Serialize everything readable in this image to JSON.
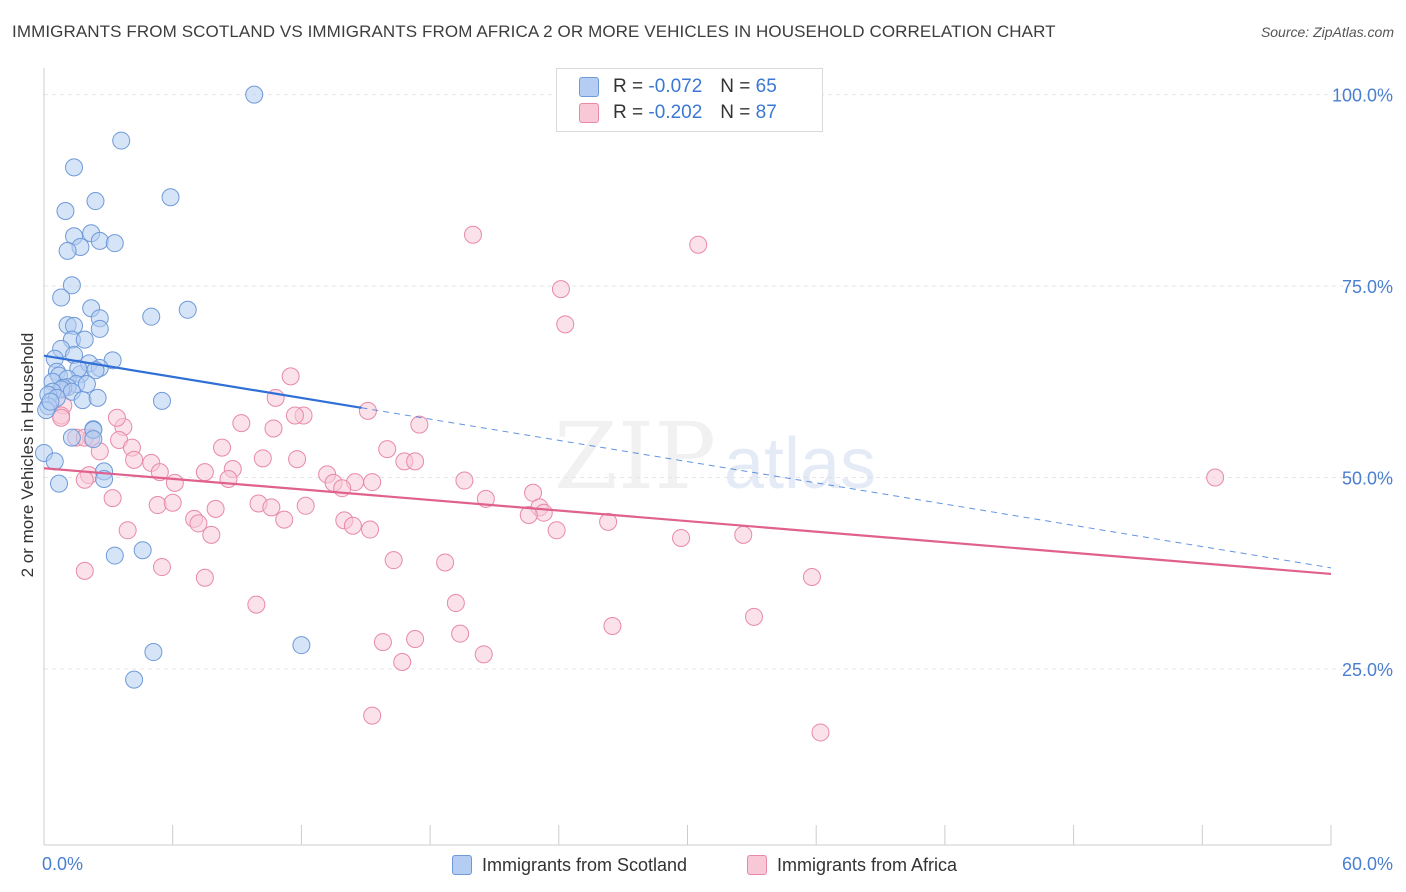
{
  "title": "IMMIGRANTS FROM SCOTLAND VS IMMIGRANTS FROM AFRICA 2 OR MORE VEHICLES IN HOUSEHOLD CORRELATION CHART",
  "source": "Source: ZipAtlas.com",
  "watermark": {
    "zip": "ZIP",
    "atlas": "atlas"
  },
  "legend": {
    "r_label": "R =",
    "n_label": "N =",
    "rows": [
      {
        "r": "-0.072",
        "n": "65"
      },
      {
        "r": "-0.202",
        "n": "87"
      }
    ]
  },
  "colors": {
    "blue_fill": "#b5cdf2",
    "blue_stroke": "#6f9ad8",
    "blue_line": "#2f6fd6",
    "pink_fill": "#f8c8d7",
    "pink_stroke": "#e88aa7",
    "pink_line": "#e0608e",
    "tick_label": "#4a7fd0",
    "grid": "#e6e6e6"
  },
  "chart_data": {
    "type": "scatter",
    "title": "IMMIGRANTS FROM SCOTLAND VS IMMIGRANTS FROM AFRICA 2 OR MORE VEHICLES IN HOUSEHOLD CORRELATION CHART",
    "xlabel": "",
    "ylabel": "2 or more Vehicles in Household",
    "xlim": [
      0,
      60
    ],
    "ylim": [
      2,
      104
    ],
    "x_tick_labels": [
      "0.0%",
      "60.0%"
    ],
    "y_ticks": [
      25,
      50,
      75,
      100
    ],
    "y_tick_labels": [
      "25.0%",
      "50.0%",
      "75.0%",
      "100.0%"
    ],
    "grid": true,
    "legend_position": "top-center",
    "series": [
      {
        "name": "Immigrants from Scotland",
        "r": -0.072,
        "n": 65,
        "trend": {
          "x": [
            0,
            14.8
          ],
          "y": [
            65.9,
            59.1
          ],
          "dashed_to": [
            60,
            38.2
          ]
        },
        "points": [
          [
            9.8,
            100
          ],
          [
            3.6,
            94
          ],
          [
            1.4,
            90.5
          ],
          [
            5.9,
            86.6
          ],
          [
            2.4,
            86.1
          ],
          [
            1.0,
            84.8
          ],
          [
            1.4,
            81.5
          ],
          [
            2.2,
            81.9
          ],
          [
            2.6,
            80.9
          ],
          [
            1.7,
            80.1
          ],
          [
            3.3,
            80.6
          ],
          [
            1.1,
            79.6
          ],
          [
            1.3,
            75.1
          ],
          [
            0.8,
            73.5
          ],
          [
            2.2,
            72.1
          ],
          [
            6.7,
            71.9
          ],
          [
            5.0,
            71.0
          ],
          [
            2.6,
            70.8
          ],
          [
            1.1,
            69.9
          ],
          [
            2.6,
            69.4
          ],
          [
            1.4,
            69.8
          ],
          [
            1.3,
            68
          ],
          [
            1.9,
            68
          ],
          [
            0.8,
            66.8
          ],
          [
            1.4,
            66
          ],
          [
            0.5,
            65.5
          ],
          [
            3.2,
            65.3
          ],
          [
            0.6,
            63.8
          ],
          [
            1.7,
            63.5
          ],
          [
            2.1,
            64.9
          ],
          [
            1.6,
            64.2
          ],
          [
            2.6,
            64.3
          ],
          [
            2.4,
            64
          ],
          [
            0.7,
            63.3
          ],
          [
            1.1,
            62.9
          ],
          [
            0.4,
            62.5
          ],
          [
            1.5,
            62.2
          ],
          [
            1.1,
            61.8
          ],
          [
            0.9,
            61.7
          ],
          [
            2.0,
            62.2
          ],
          [
            0.8,
            61.5
          ],
          [
            0.4,
            61.2
          ],
          [
            0.2,
            60.8
          ],
          [
            1.3,
            61.2
          ],
          [
            0.6,
            60.4
          ],
          [
            1.8,
            60.1
          ],
          [
            2.5,
            60.4
          ],
          [
            5.5,
            60
          ],
          [
            0.2,
            59.3
          ],
          [
            0.1,
            58.8
          ],
          [
            0.3,
            59.9
          ],
          [
            2.3,
            56.3
          ],
          [
            2.3,
            56.2
          ],
          [
            1.3,
            55.2
          ],
          [
            2.3,
            55
          ],
          [
            0.0,
            53.2
          ],
          [
            0.5,
            52.1
          ],
          [
            2.8,
            50.8
          ],
          [
            2.8,
            49.8
          ],
          [
            0.7,
            49.2
          ],
          [
            3.3,
            39.8
          ],
          [
            4.6,
            40.5
          ],
          [
            5.1,
            27.2
          ],
          [
            12.0,
            28.1
          ],
          [
            4.2,
            23.6
          ]
        ]
      },
      {
        "name": "Immigrants from Africa",
        "r": -0.202,
        "n": 87,
        "trend": {
          "x": [
            0,
            60
          ],
          "y": [
            51.2,
            37.4
          ]
        },
        "points": [
          [
            20.0,
            81.7
          ],
          [
            30.5,
            80.4
          ],
          [
            24.1,
            74.6
          ],
          [
            24.3,
            70
          ],
          [
            11.5,
            63.2
          ],
          [
            0.8,
            61.5
          ],
          [
            10.8,
            60.4
          ],
          [
            0.9,
            59.4
          ],
          [
            0.8,
            58.1
          ],
          [
            12.1,
            58.1
          ],
          [
            15.1,
            58.7
          ],
          [
            11.7,
            58.1
          ],
          [
            17.5,
            56.9
          ],
          [
            3.7,
            56.6
          ],
          [
            9.2,
            57.1
          ],
          [
            10.7,
            56.4
          ],
          [
            1.5,
            55.2
          ],
          [
            2.2,
            55.2
          ],
          [
            3.5,
            54.9
          ],
          [
            8.3,
            53.9
          ],
          [
            16.0,
            53.7
          ],
          [
            4.1,
            53.9
          ],
          [
            2.6,
            53.4
          ],
          [
            11.8,
            52.4
          ],
          [
            16.8,
            52.1
          ],
          [
            4.2,
            52.3
          ],
          [
            5.0,
            51.9
          ],
          [
            10.2,
            52.5
          ],
          [
            17.3,
            52.1
          ],
          [
            8.8,
            51.1
          ],
          [
            5.4,
            50.7
          ],
          [
            7.5,
            50.7
          ],
          [
            2.1,
            50.3
          ],
          [
            13.2,
            50.4
          ],
          [
            1.9,
            49.7
          ],
          [
            8.6,
            49.8
          ],
          [
            19.6,
            49.6
          ],
          [
            6.1,
            49.3
          ],
          [
            13.5,
            49.3
          ],
          [
            14.5,
            49.4
          ],
          [
            15.3,
            49.4
          ],
          [
            13.9,
            48.6
          ],
          [
            22.8,
            48
          ],
          [
            3.2,
            47.3
          ],
          [
            20.6,
            47.2
          ],
          [
            5.3,
            46.4
          ],
          [
            10.0,
            46.6
          ],
          [
            12.2,
            46.3
          ],
          [
            6.0,
            46.7
          ],
          [
            8.0,
            45.9
          ],
          [
            10.6,
            46.1
          ],
          [
            23.1,
            46.1
          ],
          [
            23.3,
            45.4
          ],
          [
            22.6,
            45.1
          ],
          [
            7.0,
            44.6
          ],
          [
            26.3,
            44.2
          ],
          [
            14.0,
            44.4
          ],
          [
            7.2,
            44
          ],
          [
            11.2,
            44.5
          ],
          [
            14.4,
            43.7
          ],
          [
            15.2,
            43.2
          ],
          [
            23.9,
            43.1
          ],
          [
            3.9,
            43.1
          ],
          [
            7.8,
            42.5
          ],
          [
            29.7,
            42.1
          ],
          [
            32.6,
            42.5
          ],
          [
            16.3,
            39.2
          ],
          [
            18.7,
            38.9
          ],
          [
            5.5,
            38.3
          ],
          [
            1.9,
            37.8
          ],
          [
            7.5,
            36.9
          ],
          [
            35.8,
            37
          ],
          [
            9.9,
            33.4
          ],
          [
            19.2,
            33.6
          ],
          [
            33.1,
            31.8
          ],
          [
            26.5,
            30.6
          ],
          [
            19.4,
            29.6
          ],
          [
            17.3,
            28.9
          ],
          [
            15.8,
            28.5
          ],
          [
            20.5,
            26.9
          ],
          [
            16.7,
            25.9
          ],
          [
            15.3,
            18.9
          ],
          [
            36.2,
            16.7
          ],
          [
            54.6,
            50
          ],
          [
            3.4,
            57.8
          ],
          [
            0.8,
            57.8
          ],
          [
            1.9,
            55.2
          ]
        ]
      }
    ]
  }
}
